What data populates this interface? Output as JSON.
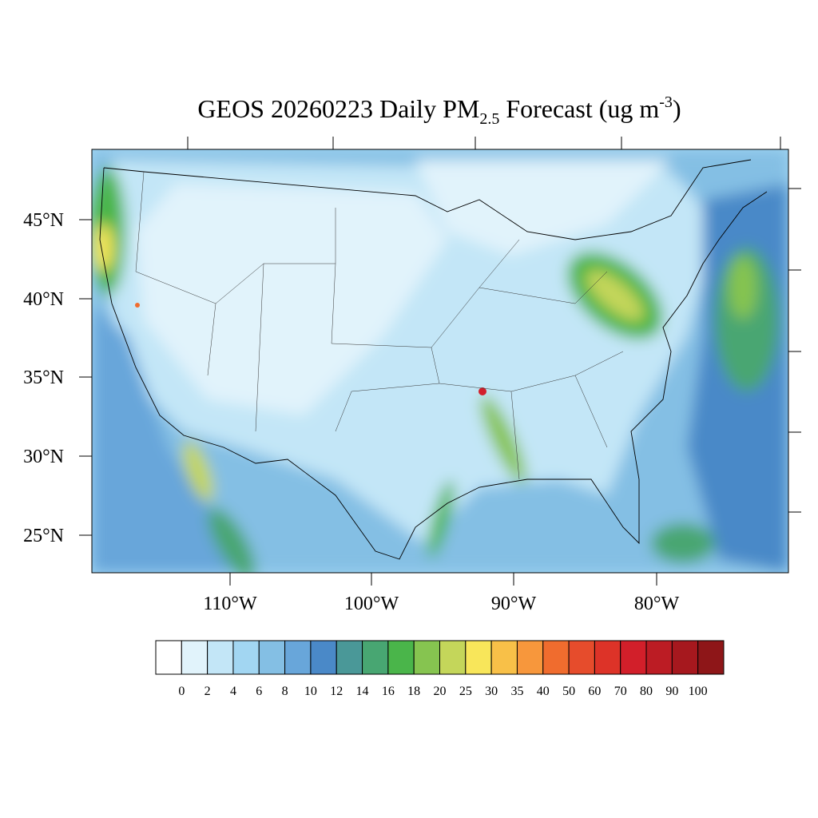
{
  "title": {
    "main": "GEOS 20260223 Daily PM",
    "subscript": "2.5",
    "middle": " Forecast (ug m",
    "superscript": "-3",
    "end": ")"
  },
  "map": {
    "lat_labels": [
      "45°N",
      "40°N",
      "35°N",
      "30°N",
      "25°N"
    ],
    "lon_labels": [
      "110°W",
      "100°W",
      "90°W",
      "80°W"
    ]
  },
  "colorbar": {
    "levels": [
      0,
      2,
      4,
      6,
      8,
      10,
      12,
      14,
      16,
      18,
      20,
      25,
      30,
      35,
      40,
      50,
      60,
      70,
      80,
      90,
      100
    ],
    "colors": [
      "#ffffff",
      "#e1f3fb",
      "#c3e6f7",
      "#a2d6f2",
      "#84bfe4",
      "#68a6da",
      "#4a89c8",
      "#4a9898",
      "#48a672",
      "#4ab54a",
      "#86c450",
      "#c4d65a",
      "#f8e65a",
      "#f8c048",
      "#f7973c",
      "#f06c2e",
      "#e64c2c",
      "#dd3328",
      "#d21f2a",
      "#bc1c24",
      "#a6181e",
      "#8e1618"
    ]
  }
}
